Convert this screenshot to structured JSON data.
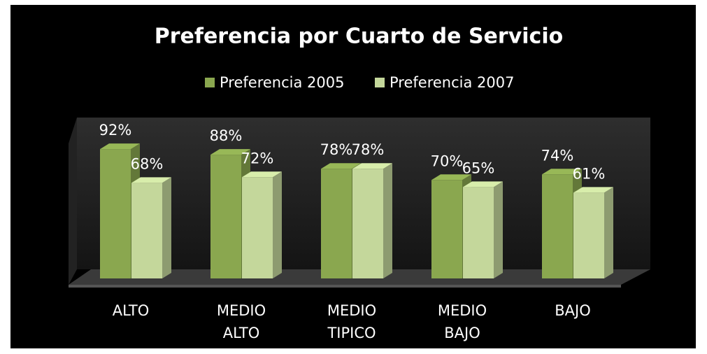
{
  "chart_data": {
    "type": "bar",
    "title": "Preferencia por Cuarto de Servicio",
    "categories": [
      "ALTO",
      "MEDIO ALTO",
      "MEDIO TIPICO",
      "MEDIO BAJO",
      "BAJO"
    ],
    "series": [
      {
        "name": "Preferencia 2005",
        "color": "#8aa74f",
        "values": [
          92,
          88,
          78,
          70,
          74
        ],
        "value_labels": [
          "92%",
          "88%",
          "78%",
          "70%",
          "74%"
        ]
      },
      {
        "name": "Preferencia 2007",
        "color": "#c4d79b",
        "values": [
          68,
          72,
          78,
          65,
          61
        ],
        "value_labels": [
          "68%",
          "72%",
          "78%",
          "65%",
          "61%"
        ]
      }
    ]
  }
}
